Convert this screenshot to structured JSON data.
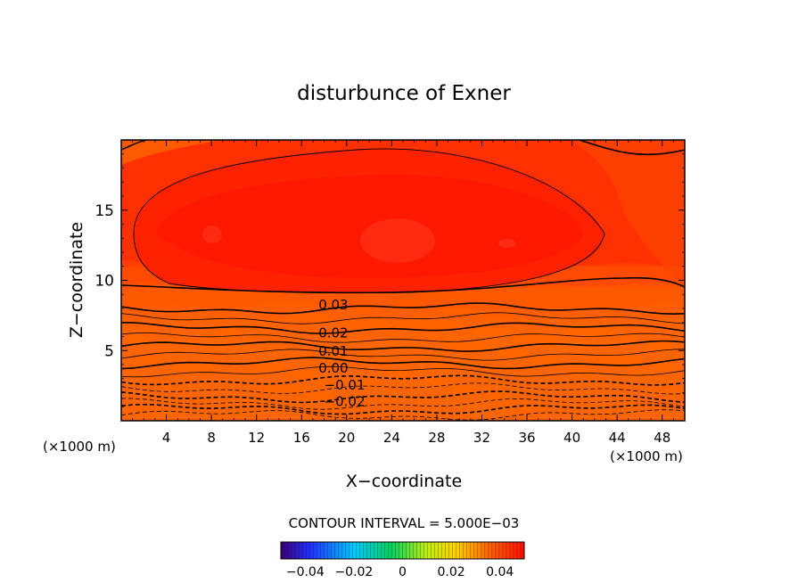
{
  "chart_data": {
    "type": "contour",
    "title": "disturbunce of Exner",
    "xlabel": "X−coordinate",
    "ylabel": "Z−coordinate",
    "xunit_left": "(×1000 m)",
    "xunit_right": "(×1000 m)",
    "xlim": [
      0,
      50
    ],
    "ylim": [
      0,
      20
    ],
    "xticks": [
      4,
      8,
      12,
      16,
      20,
      24,
      28,
      32,
      36,
      40,
      44,
      48
    ],
    "xtick_labels": [
      "4",
      "8",
      "12",
      "16",
      "20",
      "24",
      "28",
      "32",
      "36",
      "40",
      "44",
      "48"
    ],
    "yticks": [
      5,
      10,
      15
    ],
    "ytick_labels": [
      "5",
      "10",
      "15"
    ],
    "contour_interval_text": "CONTOUR INTERVAL = 5.000E−03",
    "contour_labels": [
      {
        "text": "0.03",
        "x": 17.5,
        "z": 8.0
      },
      {
        "text": "0.02",
        "x": 17.5,
        "z": 6.0
      },
      {
        "text": "0.01",
        "x": 17.5,
        "z": 4.7
      },
      {
        "text": "0.00",
        "x": 17.5,
        "z": 3.5
      },
      {
        "text": "−0.01",
        "x": 18.0,
        "z": 2.3
      },
      {
        "text": "−0.02",
        "x": 18.0,
        "z": 1.1
      }
    ],
    "colorbar": {
      "range": [
        -0.05,
        0.05
      ],
      "ticks": [
        -0.04,
        -0.02,
        0,
        0.02,
        0.04
      ],
      "tick_labels": [
        "−0.04",
        "−0.02",
        "0",
        "0.02",
        "0.04"
      ]
    },
    "color_bands": [
      {
        "z": 0.0,
        "color": "#2a3cff"
      },
      {
        "z": 0.5,
        "color": "#1f8cff"
      },
      {
        "z": 1.0,
        "color": "#00c8ff"
      },
      {
        "z": 1.6,
        "color": "#00f0e8"
      },
      {
        "z": 2.2,
        "color": "#00e8a0"
      },
      {
        "z": 2.9,
        "color": "#00d050"
      },
      {
        "z": 3.6,
        "color": "#3ad838"
      },
      {
        "z": 4.3,
        "color": "#9ae818"
      },
      {
        "z": 5.0,
        "color": "#ecf000"
      },
      {
        "z": 5.7,
        "color": "#ffd800"
      },
      {
        "z": 6.4,
        "color": "#ffb000"
      },
      {
        "z": 7.2,
        "color": "#ff8c00"
      },
      {
        "z": 8.0,
        "color": "#ff6a00"
      },
      {
        "z": 9.5,
        "color": "#ff4a00"
      },
      {
        "z": 11.0,
        "color": "#ff3000"
      }
    ]
  }
}
